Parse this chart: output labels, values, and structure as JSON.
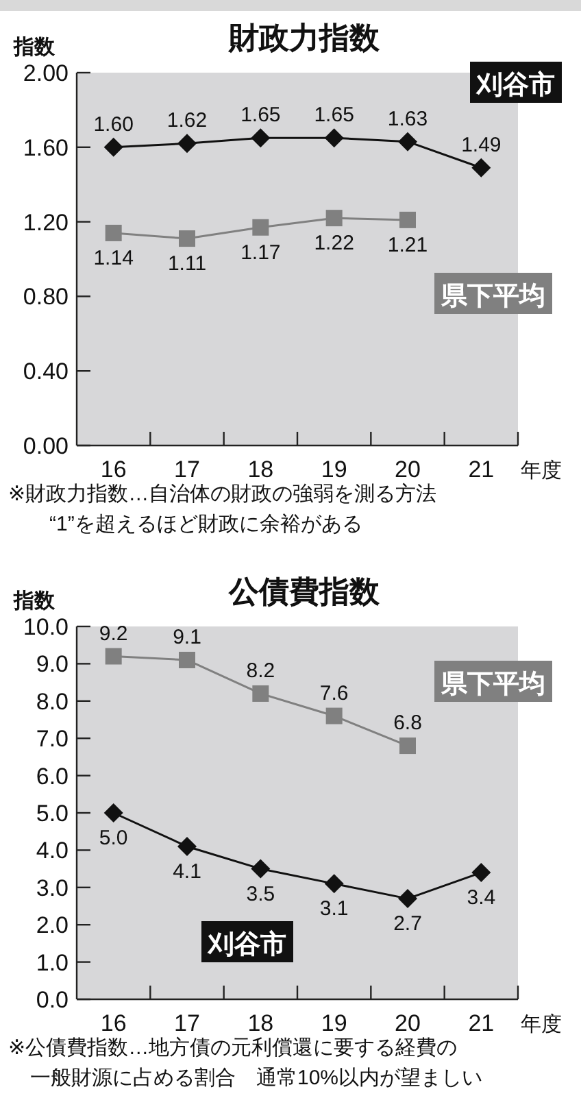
{
  "chart_data": [
    {
      "type": "line",
      "title": "財政力指数",
      "ylabel": "指数",
      "xlabel": "年度",
      "categories": [
        "16",
        "17",
        "18",
        "19",
        "20",
        "21"
      ],
      "series": [
        {
          "name": "刈谷市",
          "color": "#111111",
          "marker": "diamond",
          "values": [
            1.6,
            1.62,
            1.65,
            1.65,
            1.63,
            1.49
          ],
          "value_labels": [
            "1.60",
            "1.62",
            "1.65",
            "1.65",
            "1.63",
            "1.49"
          ]
        },
        {
          "name": "県下平均",
          "color": "#808080",
          "marker": "square",
          "values": [
            1.14,
            1.11,
            1.17,
            1.22,
            1.21,
            null
          ],
          "value_labels": [
            "1.14",
            "1.11",
            "1.17",
            "1.22",
            "1.21",
            null
          ]
        }
      ],
      "ylim": [
        0,
        2
      ],
      "yticks": [
        {
          "value": 0,
          "label": "0.00"
        },
        {
          "value": 0.4,
          "label": "0.40"
        },
        {
          "value": 0.8,
          "label": "0.80"
        },
        {
          "value": 1.2,
          "label": "1.20"
        },
        {
          "value": 1.6,
          "label": "1.60"
        },
        {
          "value": 2,
          "label": "2.00"
        }
      ],
      "grid": false,
      "annotations": [
        "※財政力指数…自治体の財政の強弱を測る方法",
        "“1”を超えるほど財政に余裕がある"
      ]
    },
    {
      "type": "line",
      "title": "公債費指数",
      "ylabel": "指数",
      "xlabel": "年度",
      "categories": [
        "16",
        "17",
        "18",
        "19",
        "20",
        "21"
      ],
      "series": [
        {
          "name": "県下平均",
          "color": "#808080",
          "marker": "square",
          "values": [
            9.2,
            9.1,
            8.2,
            7.6,
            6.8,
            null
          ],
          "value_labels": [
            "9.2",
            "9.1",
            "8.2",
            "7.6",
            "6.8",
            null
          ]
        },
        {
          "name": "刈谷市",
          "color": "#111111",
          "marker": "diamond",
          "values": [
            5.0,
            4.1,
            3.5,
            3.1,
            2.7,
            3.4
          ],
          "value_labels": [
            "5.0",
            "4.1",
            "3.5",
            "3.1",
            "2.7",
            "3.4"
          ]
        }
      ],
      "ylim": [
        0,
        10
      ],
      "yticks": [
        {
          "value": 0,
          "label": "0.0"
        },
        {
          "value": 1,
          "label": "1.0"
        },
        {
          "value": 2,
          "label": "2.0"
        },
        {
          "value": 3,
          "label": "3.0"
        },
        {
          "value": 4,
          "label": "4.0"
        },
        {
          "value": 5,
          "label": "5.0"
        },
        {
          "value": 6,
          "label": "6.0"
        },
        {
          "value": 7,
          "label": "7.0"
        },
        {
          "value": 8,
          "label": "8.0"
        },
        {
          "value": 9,
          "label": "9.0"
        },
        {
          "value": 10,
          "label": "10.0"
        }
      ],
      "grid": false,
      "annotations": [
        "※公債費指数…地方債の元利償還に要する経費の",
        "一般財源に占める割合　通常10%以内が望ましい"
      ]
    }
  ]
}
